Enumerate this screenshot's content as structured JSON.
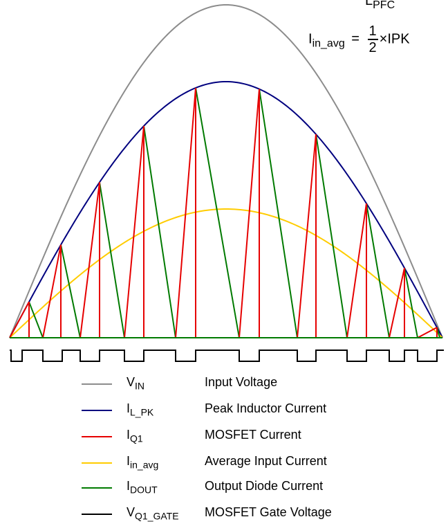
{
  "top_label": {
    "main": "L",
    "sub": "PFC"
  },
  "formula": {
    "lhs_main": "I",
    "lhs_sub": "in_avg",
    "equals": "=",
    "numerator": "1",
    "denominator": "2",
    "times": "×",
    "rhs": "IPK"
  },
  "colors": {
    "vin": "#8c8c8c",
    "il_pk": "#00007f",
    "iq1": "#e60000",
    "iin_avg": "#ffcc00",
    "idout": "#007a00",
    "gate": "#000000"
  },
  "diagram": {
    "spikes": 11
  },
  "legend": [
    {
      "sym_main": "V",
      "sym_sub": "IN",
      "desc": "Input Voltage",
      "color": "#8c8c8c"
    },
    {
      "sym_main": "I",
      "sym_sub": "L_PK",
      "desc": "Peak Inductor Current",
      "color": "#00007f"
    },
    {
      "sym_main": "I",
      "sym_sub": "Q1",
      "desc": "MOSFET Current",
      "color": "#e60000"
    },
    {
      "sym_main": "I",
      "sym_sub": "in_avg",
      "desc": "Average Input Current",
      "color": "#ffcc00"
    },
    {
      "sym_main": "I",
      "sym_sub": "DOUT",
      "desc": "Output Diode Current",
      "color": "#007a00"
    },
    {
      "sym_main": "V",
      "sym_sub": "Q1_GATE",
      "desc": "MOSFET Gate Voltage",
      "color": "#000000"
    }
  ]
}
